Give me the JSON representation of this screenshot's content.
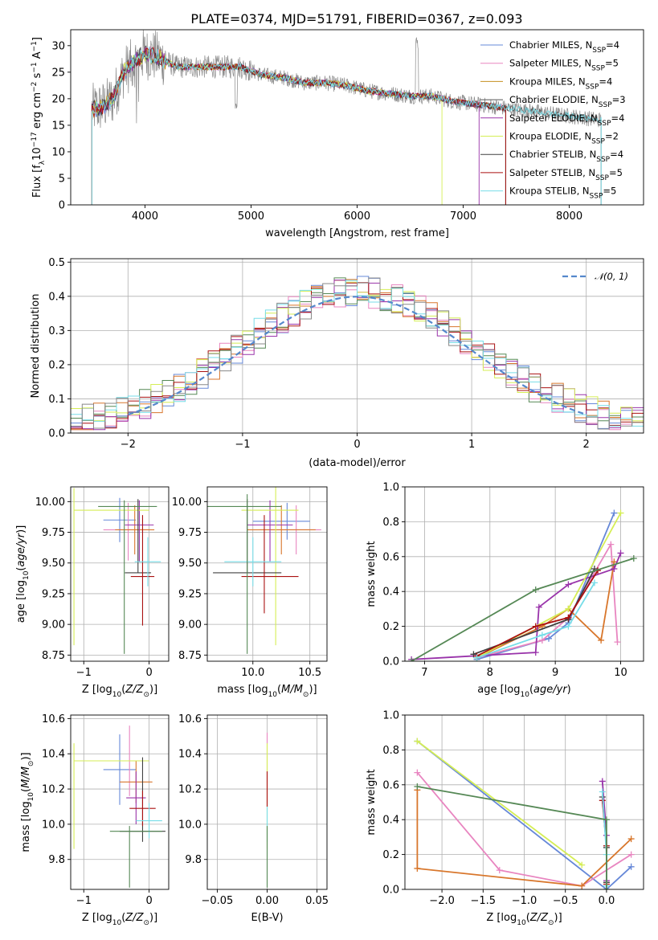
{
  "title": "PLATE=0374, MJD=51791, FIBERID=0367, z=0.093",
  "colors": [
    "#6688d8",
    "#e885c0",
    "#d8762b",
    "#888888",
    "#9933aa",
    "#d5ee55",
    "#404040",
    "#aa1111",
    "#77dde8",
    "#558855"
  ],
  "models": [
    {
      "name": "Chabrier MILES",
      "nssp": "4",
      "color": "#6688d8"
    },
    {
      "name": "Salpeter MILES",
      "nssp": "5",
      "color": "#e885c0"
    },
    {
      "name": "Kroupa MILES",
      "nssp": "4",
      "color": "#c59020"
    },
    {
      "name": "Chabrier ELODIE",
      "nssp": "3",
      "color": "#555555"
    },
    {
      "name": "Salpeter ELODIE",
      "nssp": "4",
      "color": "#9933aa"
    },
    {
      "name": "Kroupa ELODIE",
      "nssp": "2",
      "color": "#d5ee55"
    },
    {
      "name": "Chabrier STELIB",
      "nssp": "4",
      "color": "#404040"
    },
    {
      "name": "Salpeter STELIB",
      "nssp": "5",
      "color": "#aa1111"
    },
    {
      "name": "Kroupa STELIB",
      "nssp": "5",
      "color": "#77dde8"
    }
  ],
  "chart_data": [
    {
      "type": "line",
      "id": "spectrum",
      "xlabel": "wavelength [Angstrom, rest frame]",
      "ylabel": "Flux [f",
      "xlim": [
        3300,
        8700
      ],
      "ylim": [
        0,
        33
      ],
      "xticks": [
        4000,
        5000,
        6000,
        7000,
        8000
      ],
      "yticks": [
        0,
        5,
        10,
        15,
        20,
        25,
        30
      ],
      "grid": false,
      "legend": "top-right",
      "data_shape": [
        [
          3500,
          18
        ],
        [
          3600,
          18.5
        ],
        [
          3700,
          20
        ],
        [
          3800,
          25
        ],
        [
          3900,
          27
        ],
        [
          4000,
          28.5
        ],
        [
          4100,
          28
        ],
        [
          4200,
          27
        ],
        [
          4300,
          26
        ],
        [
          4500,
          26
        ],
        [
          4700,
          26
        ],
        [
          4900,
          26
        ],
        [
          5100,
          24.5
        ],
        [
          5300,
          24
        ],
        [
          5500,
          23
        ],
        [
          5700,
          23
        ],
        [
          5900,
          22.5
        ],
        [
          6100,
          21.5
        ],
        [
          6300,
          21
        ],
        [
          6500,
          20.5
        ],
        [
          6700,
          20.5
        ],
        [
          6900,
          19.5
        ],
        [
          7100,
          19
        ],
        [
          7300,
          18.5
        ],
        [
          7500,
          18
        ],
        [
          7700,
          17.5
        ],
        [
          7900,
          17
        ],
        [
          8100,
          16.5
        ],
        [
          8300,
          16
        ]
      ]
    },
    {
      "type": "step",
      "id": "residuals",
      "xlabel": "(data-model)/error",
      "ylabel": "Normed distribution",
      "xlim": [
        -2.5,
        2.5
      ],
      "ylim": [
        0,
        0.51
      ],
      "xticks": [
        -2,
        -1,
        0,
        1,
        2
      ],
      "yticks": [
        0.0,
        0.1,
        0.2,
        0.3,
        0.4,
        0.5
      ],
      "grid": true,
      "legend": "top-right",
      "legend_label": "𝒩(0, 1)",
      "reference": {
        "name": "N(0,1)",
        "mean": 0,
        "sigma": 1
      }
    },
    {
      "type": "errorbar",
      "id": "age-z",
      "xlabel": "Z [log",
      "ylabel": "age  [log",
      "xlim": [
        -1.2,
        0.3
      ],
      "ylim": [
        8.7,
        10.12
      ],
      "xticks": [
        -1,
        0
      ],
      "yticks": [
        8.75,
        9.0,
        9.25,
        9.5,
        9.75,
        10.0
      ],
      "grid": true,
      "points": [
        {
          "x": -0.45,
          "y": 9.85,
          "xerr": [
            0.25,
            0.25
          ],
          "yerr": [
            0.18,
            0.18
          ],
          "color": "#6688d8"
        },
        {
          "x": -0.32,
          "y": 9.77,
          "xerr": [
            0.38,
            0.32
          ],
          "yerr": [
            0.25,
            0.22
          ],
          "color": "#e885c0"
        },
        {
          "x": -0.22,
          "y": 9.77,
          "xerr": [
            0.3,
            0.3
          ],
          "yerr": [
            0.2,
            0.2
          ],
          "color": "#d8762b"
        },
        {
          "x": -0.15,
          "y": 9.81,
          "xerr": [
            0.22,
            0.22
          ],
          "yerr": [
            0.3,
            0.2
          ],
          "color": "#9933aa"
        },
        {
          "x": -1.15,
          "y": 9.93,
          "xerr": [
            0.0,
            1.15
          ],
          "yerr": [
            1.1,
            0.18
          ],
          "color": "#d5ee55"
        },
        {
          "x": -0.17,
          "y": 9.42,
          "xerr": [
            0.2,
            0.2
          ],
          "yerr": [
            0.0,
            0.6
          ],
          "color": "#404040"
        },
        {
          "x": -0.1,
          "y": 9.39,
          "xerr": [
            0.18,
            0.18
          ],
          "yerr": [
            0.4,
            0.5
          ],
          "color": "#aa1111"
        },
        {
          "x": -0.02,
          "y": 9.51,
          "xerr": [
            0.2,
            0.2
          ],
          "yerr": [
            0.2,
            0.2
          ],
          "color": "#77dde8"
        },
        {
          "x": -0.38,
          "y": 9.96,
          "xerr": [
            0.4,
            0.5
          ],
          "yerr": [
            1.2,
            0.05
          ],
          "color": "#558855"
        }
      ]
    },
    {
      "type": "errorbar",
      "id": "age-mass",
      "xlabel": "mass [log",
      "ylabel": "",
      "xlim": [
        9.6,
        10.65
      ],
      "ylim": [
        8.7,
        10.12
      ],
      "xticks": [
        10.0,
        10.5
      ],
      "yticks": [
        8.75,
        9.0,
        9.25,
        9.5,
        9.75,
        10.0
      ],
      "grid": true,
      "points": [
        {
          "x": 10.3,
          "y": 9.84,
          "xerr": [
            0.3,
            0.2
          ],
          "yerr": [
            0.15,
            0.15
          ],
          "color": "#6688d8"
        },
        {
          "x": 10.38,
          "y": 9.77,
          "xerr": [
            0.32,
            0.22
          ],
          "yerr": [
            0.2,
            0.2
          ],
          "color": "#e885c0"
        },
        {
          "x": 10.25,
          "y": 9.77,
          "xerr": [
            0.3,
            0.3
          ],
          "yerr": [
            0.2,
            0.2
          ],
          "color": "#d8762b"
        },
        {
          "x": 10.15,
          "y": 9.81,
          "xerr": [
            0.2,
            0.2
          ],
          "yerr": [
            0.3,
            0.2
          ],
          "color": "#9933aa"
        },
        {
          "x": 10.2,
          "y": 9.93,
          "xerr": [
            0.3,
            0.2
          ],
          "yerr": [
            1.1,
            0.2
          ],
          "color": "#d5ee55"
        },
        {
          "x": 9.95,
          "y": 9.42,
          "xerr": [
            0.3,
            0.3
          ],
          "yerr": [
            0.0,
            0.6
          ],
          "color": "#404040"
        },
        {
          "x": 10.1,
          "y": 9.39,
          "xerr": [
            0.2,
            0.3
          ],
          "yerr": [
            0.3,
            0.5
          ],
          "color": "#aa1111"
        },
        {
          "x": 10.0,
          "y": 9.51,
          "xerr": [
            0.25,
            0.25
          ],
          "yerr": [
            0.2,
            0.2
          ],
          "color": "#77dde8"
        },
        {
          "x": 9.95,
          "y": 9.96,
          "xerr": [
            0.35,
            0.3
          ],
          "yerr": [
            1.2,
            0.1
          ],
          "color": "#558855"
        }
      ]
    },
    {
      "type": "line",
      "id": "mass-weight-age",
      "xlabel": "age  [log",
      "ylabel": "mass weight",
      "xlim": [
        6.7,
        10.35
      ],
      "ylim": [
        0,
        1.0
      ],
      "xticks": [
        7,
        8,
        9,
        10
      ],
      "yticks": [
        0.0,
        0.2,
        0.4,
        0.6,
        0.8,
        1.0
      ],
      "grid": true,
      "series": [
        {
          "color": "#6688d8",
          "x": [
            7.8,
            8.9,
            9.2,
            9.9
          ],
          "y": [
            0.01,
            0.13,
            0.22,
            0.85
          ]
        },
        {
          "color": "#e885c0",
          "x": [
            7.8,
            8.8,
            9.2,
            9.85,
            9.95
          ],
          "y": [
            0.02,
            0.12,
            0.25,
            0.67,
            0.11
          ]
        },
        {
          "color": "#d8762b",
          "x": [
            7.8,
            8.8,
            9.2,
            9.7,
            9.9
          ],
          "y": [
            0.02,
            0.2,
            0.3,
            0.12,
            0.57
          ]
        },
        {
          "color": "#9933aa",
          "x": [
            6.8,
            8.7,
            8.75,
            9.2,
            9.9,
            10.0
          ],
          "y": [
            0.01,
            0.05,
            0.31,
            0.44,
            0.53,
            0.62
          ]
        },
        {
          "color": "#d5ee55",
          "x": [
            7.8,
            9.2,
            10.0
          ],
          "y": [
            0.02,
            0.3,
            0.85
          ]
        },
        {
          "color": "#404040",
          "x": [
            7.75,
            9.2,
            9.6
          ],
          "y": [
            0.04,
            0.24,
            0.53
          ]
        },
        {
          "color": "#aa1111",
          "x": [
            7.8,
            8.7,
            9.2,
            9.65
          ],
          "y": [
            0.03,
            0.2,
            0.25,
            0.52
          ]
        },
        {
          "color": "#77dde8",
          "x": [
            7.8,
            8.8,
            9.2,
            9.6
          ],
          "y": [
            0.02,
            0.15,
            0.2,
            0.45
          ]
        },
        {
          "color": "#558855",
          "x": [
            6.8,
            8.7,
            10.2
          ],
          "y": [
            0.0,
            0.41,
            0.59
          ]
        }
      ]
    },
    {
      "type": "errorbar",
      "id": "mass-z",
      "xlabel": "Z [log",
      "ylabel": "mass [log",
      "xlim": [
        -1.2,
        0.3
      ],
      "ylim": [
        9.63,
        10.62
      ],
      "xticks": [
        -1,
        0
      ],
      "yticks": [
        9.8,
        10.0,
        10.2,
        10.4,
        10.6
      ],
      "grid": true,
      "points": [
        {
          "x": -0.45,
          "y": 10.31,
          "xerr": [
            0.25,
            0.25
          ],
          "yerr": [
            0.2,
            0.2
          ],
          "color": "#6688d8"
        },
        {
          "x": -0.3,
          "y": 10.36,
          "xerr": [
            0.3,
            0.3
          ],
          "yerr": [
            0.2,
            0.2
          ],
          "color": "#e885c0"
        },
        {
          "x": -0.2,
          "y": 10.24,
          "xerr": [
            0.25,
            0.25
          ],
          "yerr": [
            0.12,
            0.12
          ],
          "color": "#d8762b"
        },
        {
          "x": -0.2,
          "y": 10.15,
          "xerr": [
            0.15,
            0.15
          ],
          "yerr": [
            0.15,
            0.15
          ],
          "color": "#9933aa"
        },
        {
          "x": -1.15,
          "y": 10.36,
          "xerr": [
            0.0,
            1.15
          ],
          "yerr": [
            0.5,
            0.1
          ],
          "color": "#d5ee55"
        },
        {
          "x": -0.1,
          "y": 9.96,
          "xerr": [
            0.35,
            0.35
          ],
          "yerr": [
            0.06,
            0.42
          ],
          "color": "#404040"
        },
        {
          "x": -0.1,
          "y": 10.09,
          "xerr": [
            0.2,
            0.2
          ],
          "yerr": [
            0.1,
            0.1
          ],
          "color": "#aa1111"
        },
        {
          "x": 0.0,
          "y": 10.02,
          "xerr": [
            0.2,
            0.2
          ],
          "yerr": [
            0.1,
            0.1
          ],
          "color": "#77dde8"
        },
        {
          "x": -0.3,
          "y": 9.96,
          "xerr": [
            0.3,
            0.5
          ],
          "yerr": [
            0.32,
            0.03
          ],
          "color": "#558855"
        }
      ]
    },
    {
      "type": "errorbar",
      "id": "mass-ebv",
      "xlabel": "E(B-V)",
      "ylabel": "",
      "xlim": [
        -0.06,
        0.06
      ],
      "ylim": [
        9.63,
        10.62
      ],
      "xticks": [
        -0.05,
        0.0,
        0.05
      ],
      "yticks": [
        9.8,
        10.0,
        10.2,
        10.4,
        10.6
      ],
      "grid": true,
      "points": [
        {
          "x": 0.0,
          "y": 10.3,
          "xerr": [
            0,
            0
          ],
          "yerr": [
            0.2,
            0.22
          ],
          "color": "#e885c0"
        },
        {
          "x": 0.0,
          "y": 10.36,
          "xerr": [
            0,
            0
          ],
          "yerr": [
            0.5,
            0.1
          ],
          "color": "#d5ee55"
        },
        {
          "x": 0.0,
          "y": 10.2,
          "xerr": [
            0,
            0
          ],
          "yerr": [
            0.1,
            0.1
          ],
          "color": "#aa1111"
        },
        {
          "x": 0.0,
          "y": 10.0,
          "xerr": [
            0,
            0
          ],
          "yerr": [
            0.1,
            0.1
          ],
          "color": "#77dde8"
        },
        {
          "x": 0.0,
          "y": 9.96,
          "xerr": [
            0,
            0
          ],
          "yerr": [
            0.32,
            0.03
          ],
          "color": "#558855"
        }
      ]
    },
    {
      "type": "line",
      "id": "mass-weight-z",
      "xlabel": "Z [log",
      "ylabel": "mass weight",
      "xlim": [
        -2.45,
        0.45
      ],
      "ylim": [
        0,
        1.0
      ],
      "xticks": [
        -2.0,
        -1.5,
        -1.0,
        -0.5,
        0.0
      ],
      "yticks": [
        0.0,
        0.2,
        0.4,
        0.6,
        0.8,
        1.0
      ],
      "grid": true,
      "series": [
        {
          "color": "#6688d8",
          "x": [
            -2.3,
            0.0,
            0.3
          ],
          "y": [
            0.85,
            0.0,
            0.13
          ]
        },
        {
          "color": "#e885c0",
          "x": [
            -2.3,
            -1.3,
            -0.3,
            0.3
          ],
          "y": [
            0.67,
            0.11,
            0.02,
            0.2
          ]
        },
        {
          "color": "#d8762b",
          "x": [
            -2.3,
            -2.3,
            -0.3,
            0.3
          ],
          "y": [
            0.57,
            0.12,
            0.02,
            0.29
          ]
        },
        {
          "color": "#9933aa",
          "x": [
            -0.05,
            0.0,
            0.0
          ],
          "y": [
            0.62,
            0.31,
            0.05
          ]
        },
        {
          "color": "#d5ee55",
          "x": [
            -2.3,
            -0.3
          ],
          "y": [
            0.85,
            0.14
          ]
        },
        {
          "color": "#404040",
          "x": [
            -0.05,
            0.0,
            0.0
          ],
          "y": [
            0.53,
            0.24,
            0.04
          ]
        },
        {
          "color": "#aa1111",
          "x": [
            -0.05,
            0.0,
            0.0
          ],
          "y": [
            0.51,
            0.25,
            0.03
          ]
        },
        {
          "color": "#77dde8",
          "x": [
            -0.05,
            0.0,
            0.0
          ],
          "y": [
            0.56,
            0.2,
            0.02
          ]
        },
        {
          "color": "#558855",
          "x": [
            -2.3,
            0.0,
            0.0
          ],
          "y": [
            0.59,
            0.4,
            0.0
          ]
        }
      ]
    }
  ]
}
